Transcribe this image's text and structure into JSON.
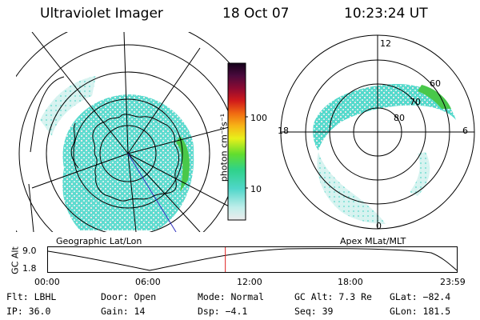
{
  "header": {
    "instrument": "Ultraviolet Imager",
    "date": "18 Oct 07",
    "time": "10:23:24 UT"
  },
  "colorbar": {
    "unit_label": "photon cm⁻²s⁻¹",
    "ticks": [
      "100",
      "10"
    ]
  },
  "geo_panel": {
    "title": "Geographic Lat/Lon"
  },
  "mlt_panel": {
    "title": "Apex MLat/MLT",
    "mlt_labels": {
      "top": "12",
      "left": "18",
      "right": "6",
      "bottom": "0"
    },
    "lat_labels": [
      "60",
      "70",
      "80"
    ]
  },
  "altitude_strip": {
    "ylabel": "GC Alt",
    "yticks": [
      "9.0",
      "1.8"
    ],
    "xticks": [
      "00:00",
      "06:00",
      "12:00",
      "18:00",
      "23:59"
    ],
    "current_time_hours": 10.39
  },
  "status": {
    "row1": {
      "filter": "Flt: LBHL",
      "door": "Door: Open",
      "mode": "Mode: Normal",
      "gc_alt": "GC Alt: 7.3 Re",
      "glat": "GLat: −82.4"
    },
    "row2": {
      "ip": "IP: 36.0",
      "gain": "Gain: 14",
      "dsp": "Dsp:   −4.1",
      "seq": "Seq: 39",
      "glon": "GLon: 181.5"
    }
  },
  "colors": {
    "aurora_fill": "#4fd6c9",
    "aurora_light": "#bfeeea",
    "aurora_green": "#49c84a",
    "marker": "#e02020",
    "sun_line": "#3030c0"
  }
}
